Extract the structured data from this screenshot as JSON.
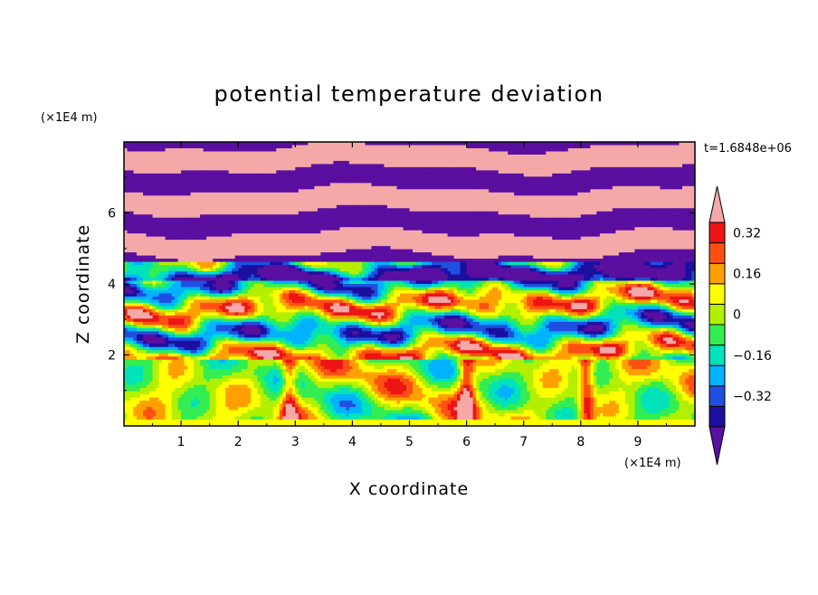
{
  "chart_data": {
    "type": "heatmap",
    "title": "potential temperature deviation",
    "xlabel": "X coordinate",
    "ylabel": "Z coordinate",
    "x_unit": "(×1E4 m)",
    "y_unit": "(×1E4 m)",
    "time_label": "t=1.6848e+06",
    "xlim": [
      0,
      10
    ],
    "ylim": [
      0,
      8
    ],
    "xticks": [
      "1",
      "2",
      "3",
      "4",
      "5",
      "6",
      "7",
      "8",
      "9"
    ],
    "yticks": [
      "2",
      "4",
      "6"
    ],
    "colorbar": {
      "levels": [
        -0.4,
        -0.32,
        -0.24,
        -0.16,
        -0.08,
        0,
        0.08,
        0.16,
        0.24,
        0.32,
        0.4
      ],
      "tick_labels": [
        "0.32",
        "0.16",
        "0",
        "−0.16",
        "−0.32"
      ],
      "colors": [
        "#5a0fa0",
        "#1c0fa0",
        "#1f4fe0",
        "#00b2ff",
        "#00e3ba",
        "#33ee52",
        "#b2f000",
        "#ffff00",
        "#ffa000",
        "#ff5014",
        "#ec1414",
        "#f4a8a8"
      ]
    },
    "layers": [
      {
        "z_range": [
          0,
          2
        ],
        "description": "mixed mid values with warm plumes"
      },
      {
        "z_range": [
          2,
          4.5
        ],
        "description": "layered negative/positive bands"
      },
      {
        "z_range": [
          4.5,
          8
        ],
        "description": "alternating strong positive and strong negative layers"
      }
    ]
  }
}
